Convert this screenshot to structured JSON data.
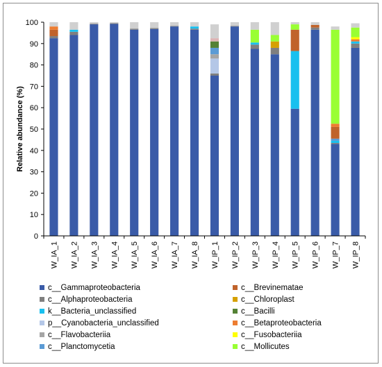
{
  "chart_data": {
    "type": "bar",
    "stacked": true,
    "ylabel": "Relative abundance (%)",
    "ylim": [
      0,
      100
    ],
    "yticks": [
      0,
      10,
      20,
      30,
      40,
      50,
      60,
      70,
      80,
      90,
      100
    ],
    "grid": false,
    "legend_position": "bottom",
    "categories": [
      "W_IA_1",
      "W_IA_2",
      "W_IA_3",
      "W_IA_4",
      "W_IA_5",
      "W_IA_6",
      "W_IA_7",
      "W_IA_8",
      "W_IP_1",
      "W_IP_2",
      "W_IP_3",
      "W_IP_4",
      "W_IP_5",
      "W_IP_6",
      "W_IP_7",
      "W_IP_8"
    ],
    "series": [
      {
        "name": "c__Gammaproteobacteria",
        "color": "#3a5ba8",
        "values": [
          92.5,
          94,
          99,
          99.2,
          96.5,
          96.8,
          98,
          96.5,
          75,
          98,
          87.5,
          85,
          59.5,
          96.5,
          43,
          88
        ]
      },
      {
        "name": "c__Alphaproteobacteria",
        "color": "#7f7f7f",
        "values": [
          1,
          1.5,
          0.3,
          0.3,
          0.5,
          0.5,
          0.3,
          0.5,
          1,
          0.3,
          2,
          3,
          0,
          1,
          0.5,
          2
        ]
      },
      {
        "name": "k__Bacteria_unclassified",
        "color": "#19c0ef",
        "values": [
          0,
          1,
          0,
          0,
          0,
          0,
          0,
          1,
          0,
          0,
          1,
          0,
          27,
          0,
          1,
          1
        ]
      },
      {
        "name": "p__Cyanobacteria_unclassified",
        "color": "#b4c7e7",
        "values": [
          0,
          0,
          0,
          0,
          0,
          0,
          0,
          0,
          7,
          0,
          0,
          0,
          0,
          0,
          0,
          0
        ]
      },
      {
        "name": "c__Flavobacteriia",
        "color": "#a5a5a5",
        "values": [
          0,
          0,
          0,
          0,
          0,
          0,
          0,
          0,
          2,
          0,
          0,
          0,
          0,
          0,
          0,
          0
        ]
      },
      {
        "name": "c__Planctomycetia",
        "color": "#5b9bd5",
        "values": [
          0,
          0,
          0,
          0,
          0,
          0,
          0,
          0,
          3,
          0,
          0,
          0,
          0,
          0,
          1,
          0
        ]
      },
      {
        "name": "c__Brevinematae",
        "color": "#c0632b",
        "values": [
          3,
          0,
          0,
          0,
          0,
          0,
          0,
          0,
          0,
          0,
          0,
          0,
          10,
          1.2,
          5.5,
          0
        ]
      },
      {
        "name": "c__Chloroplast",
        "color": "#d6a000",
        "values": [
          0,
          0,
          0,
          0,
          0,
          0,
          0,
          0,
          0,
          0,
          0,
          3,
          0,
          0,
          0,
          0
        ]
      },
      {
        "name": "c__Bacilli",
        "color": "#548235",
        "values": [
          0,
          0,
          0,
          0,
          0,
          0,
          0,
          0,
          3,
          0,
          0,
          0,
          0,
          0,
          0,
          0
        ]
      },
      {
        "name": "c__Betaproteobacteria",
        "color": "#ed7d31",
        "values": [
          1.5,
          0,
          0,
          0,
          0,
          0,
          0,
          0,
          0,
          0,
          0,
          0,
          0,
          0,
          1.5,
          1
        ]
      },
      {
        "name": "c__Fusobacteriia",
        "color": "#ffff00",
        "values": [
          0,
          0,
          0,
          0,
          0,
          0,
          0,
          0,
          0,
          0,
          0,
          0,
          0,
          0,
          0,
          1
        ]
      },
      {
        "name": "c__Mollicutes",
        "color": "#99ff33",
        "values": [
          0,
          0,
          0,
          0,
          0,
          0,
          0,
          0,
          0,
          0,
          6,
          3,
          2.5,
          0,
          44,
          4.5
        ]
      },
      {
        "name": "",
        "color": "#dcb4b4",
        "values": [
          0,
          0,
          0,
          0,
          0,
          0,
          0,
          0,
          1.5,
          0,
          0,
          0,
          0,
          0,
          0,
          0
        ]
      },
      {
        "name": "",
        "color": "#d0d0d0",
        "values": [
          2,
          3.5,
          0.7,
          0.5,
          3,
          2.7,
          1.7,
          2,
          6.5,
          1.7,
          3.5,
          6,
          1,
          1.3,
          1.5,
          2
        ]
      }
    ],
    "legend": {
      "left": [
        "c__Gammaproteobacteria",
        "c__Alphaproteobacteria",
        "k__Bacteria_unclassified",
        "p__Cyanobacteria_unclassified",
        "c__Flavobacteriia",
        "c__Planctomycetia"
      ],
      "right": [
        "c__Brevinematae",
        "c__Chloroplast",
        "c__Bacilli",
        "c__Betaproteobacteria",
        "c__Fusobacteriia",
        "c__Mollicutes"
      ]
    }
  }
}
